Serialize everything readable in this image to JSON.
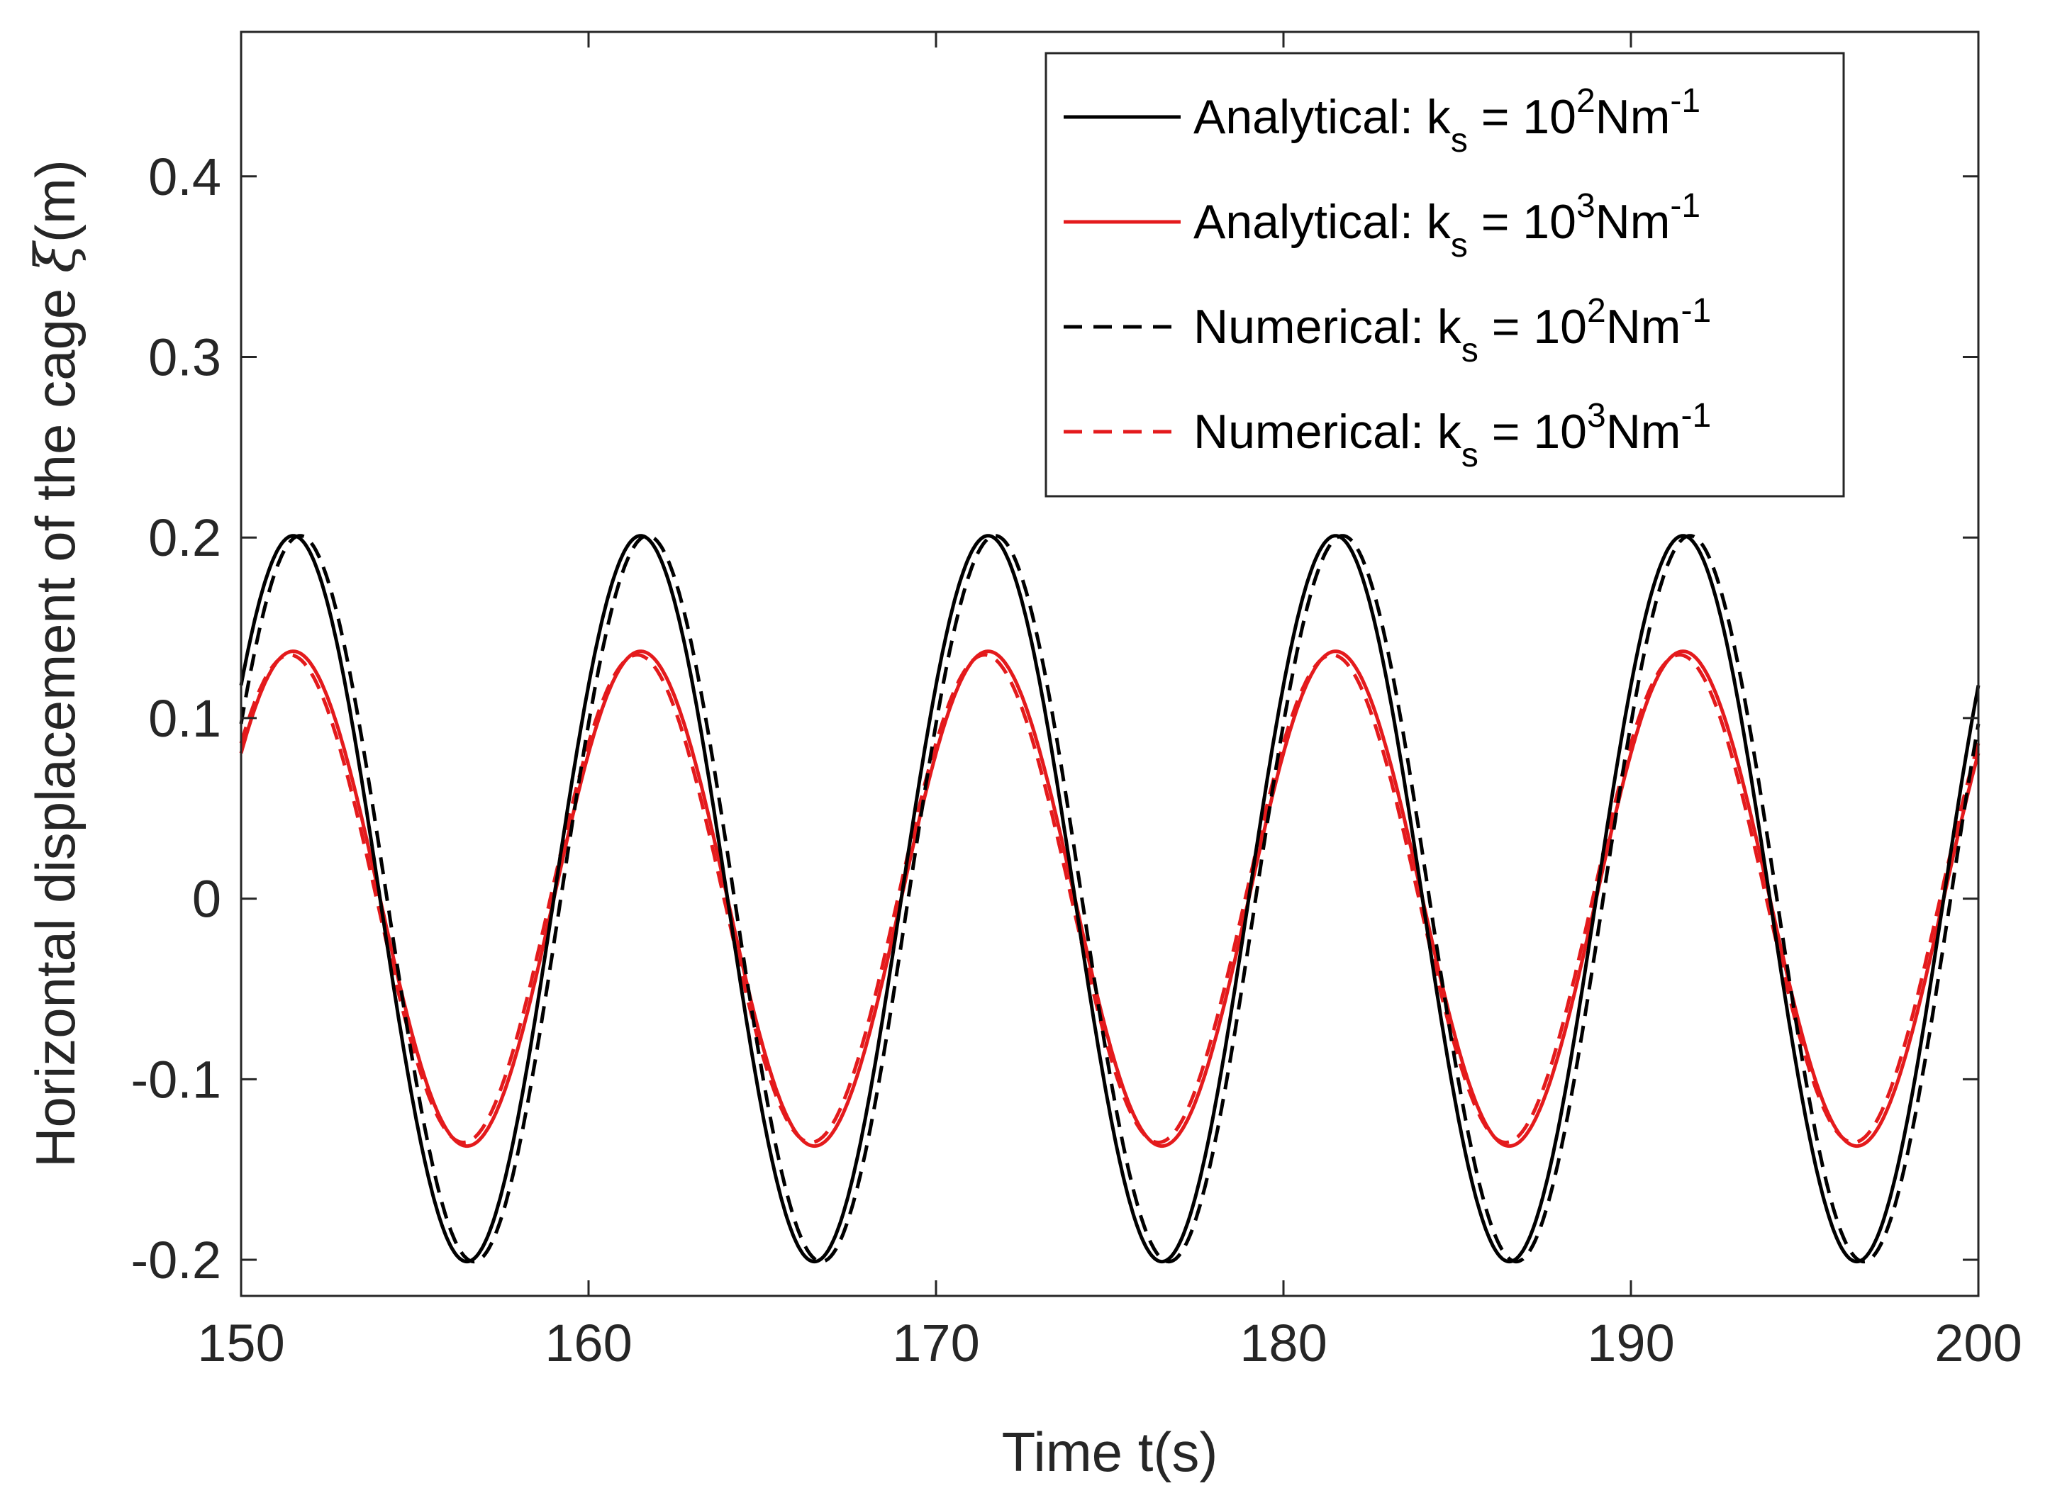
{
  "chart_data": {
    "type": "line",
    "title": "",
    "xlabel": "Time t(s)",
    "ylabel": {
      "prefix": "Horizontal displacement of the cage ",
      "symbol": "ξ",
      "suffix": "(m)"
    },
    "xlim": [
      150,
      200
    ],
    "ylim": [
      -0.22,
      0.48
    ],
    "xticks": [
      150,
      160,
      170,
      180,
      190,
      200
    ],
    "xtick_labels": [
      "150",
      "160",
      "170",
      "180",
      "190",
      "200"
    ],
    "yticks": [
      -0.2,
      -0.1,
      0,
      0.1,
      0.2,
      0.3,
      0.4
    ],
    "ytick_labels": [
      "-0.2",
      "-0.1",
      "0",
      "0.1",
      "0.2",
      "0.3",
      "0.4"
    ],
    "grid": false,
    "legend_position": "top-right",
    "period": 10,
    "series": [
      {
        "name": "Analytical: k_s = 10^2 Nm^-1",
        "legend": {
          "prefix": "Analytical: k",
          "sub": "s",
          "mid": " = 10",
          "sup": "2",
          "unit": "Nm",
          "unit_sup": "-1"
        },
        "style": "solid",
        "color": "#000000",
        "amplitude": 0.201,
        "peak_times": [
          151.5,
          161.5,
          171.5,
          181.5,
          191.5
        ]
      },
      {
        "name": "Analytical: k_s = 10^3 Nm^-1",
        "legend": {
          "prefix": "Analytical: k",
          "sub": "s",
          "mid": " = 10",
          "sup": "3",
          "unit": "Nm",
          "unit_sup": "-1"
        },
        "style": "solid",
        "color": "#e41a1c",
        "amplitude": 0.137,
        "peak_times": [
          151.5,
          161.5,
          171.5,
          181.5,
          191.5
        ]
      },
      {
        "name": "Numerical: k_s = 10^2 Nm^-1",
        "legend": {
          "prefix": "Numerical: k",
          "sub": "s",
          "mid": " = 10",
          "sup": "2",
          "unit": "Nm",
          "unit_sup": "-1"
        },
        "style": "dashed",
        "color": "#000000",
        "amplitude": 0.201,
        "peak_times": [
          151.7,
          161.7,
          171.7,
          181.7,
          191.7
        ]
      },
      {
        "name": "Numerical: k_s = 10^3 Nm^-1",
        "legend": {
          "prefix": "Numerical: k",
          "sub": "s",
          "mid": " = 10",
          "sup": "3",
          "unit": "Nm",
          "unit_sup": "-1"
        },
        "style": "dashed",
        "color": "#e41a1c",
        "amplitude": 0.135,
        "peak_times": [
          151.4,
          161.4,
          171.4,
          181.4,
          191.4
        ]
      }
    ]
  }
}
